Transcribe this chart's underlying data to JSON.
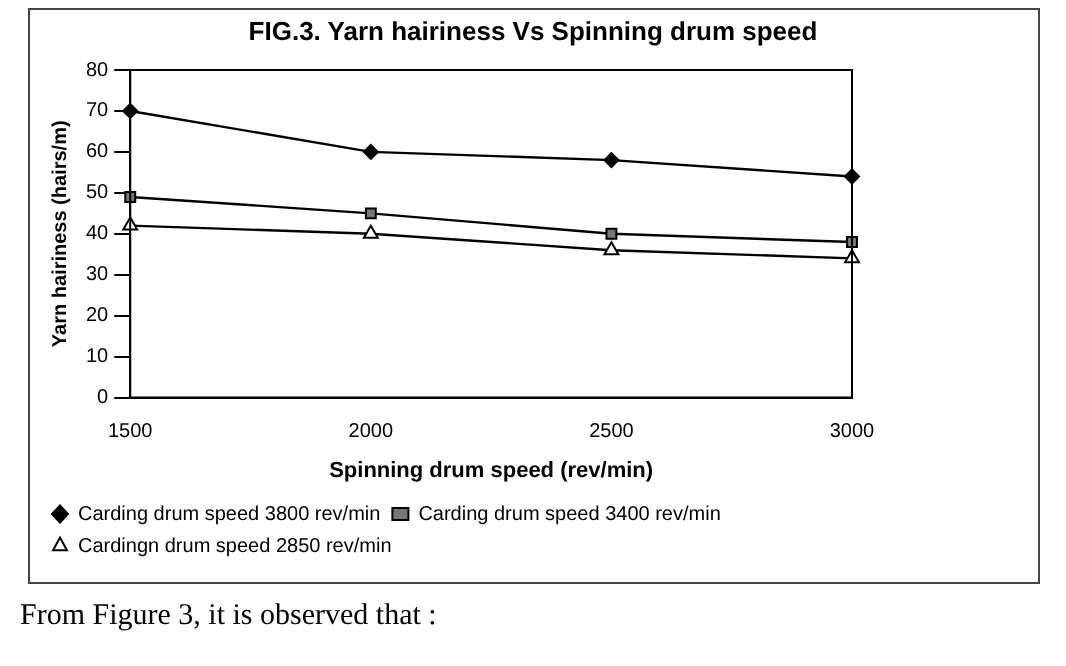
{
  "chart_data": {
    "type": "line",
    "title": "FIG.3. Yarn hairiness Vs Spinning drum speed",
    "xlabel": "Spinning drum speed (rev/min)",
    "ylabel": "Yarn hairiness (hairs/m)",
    "x": [
      1500,
      2000,
      2500,
      3000
    ],
    "xlim": [
      1500,
      3000
    ],
    "xticks": [
      1500,
      2000,
      2500,
      3000
    ],
    "ylim": [
      0,
      80
    ],
    "yticks": [
      0,
      10,
      20,
      30,
      40,
      50,
      60,
      70,
      80
    ],
    "series": [
      {
        "name": "Carding drum speed 3800 rev/min",
        "color": "#000000",
        "marker": "diamond",
        "values": [
          70,
          60,
          58,
          54
        ]
      },
      {
        "name": "Carding drum speed 3400 rev/min",
        "color": "#000000",
        "marker": "square",
        "values": [
          49,
          45,
          40,
          38
        ]
      },
      {
        "name": "Cardingn drum speed 2850 rev/min",
        "color": "#000000",
        "marker": "triangle",
        "values": [
          42,
          40,
          36,
          34
        ]
      }
    ],
    "grid": false,
    "legend": "bottom",
    "line_style": "solid",
    "annotations": [
      "From Figure 3, it is observed that :"
    ]
  }
}
